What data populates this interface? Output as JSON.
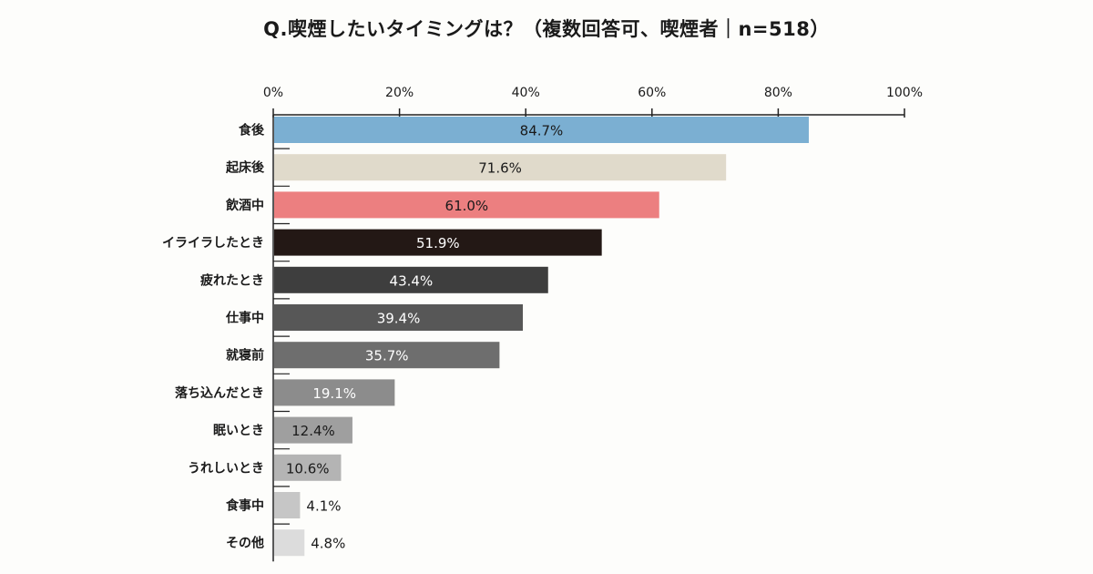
{
  "chart_data": {
    "type": "bar",
    "orientation": "horizontal",
    "title": "Q.喫煙したいタイミングは？（複数回答可、喫煙者｜n=518）",
    "xlim": [
      0,
      100
    ],
    "x_ticks": [
      "0%",
      "20%",
      "40%",
      "60%",
      "80%",
      "100%"
    ],
    "x_tick_values": [
      0,
      20,
      40,
      60,
      80,
      100
    ],
    "grid": false,
    "legend": "none",
    "categories": [
      "食後",
      "起床後",
      "飲酒中",
      "イライラしたとき",
      "疲れたとき",
      "仕事中",
      "就寝前",
      "落ち込んだとき",
      "眠いとき",
      "うれしいとき",
      "食事中",
      "その他"
    ],
    "values": [
      84.7,
      71.6,
      61.0,
      51.9,
      43.4,
      39.4,
      35.7,
      19.1,
      12.4,
      10.6,
      4.1,
      4.8
    ],
    "value_labels": [
      "84.7%",
      "71.6%",
      "61.0%",
      "51.9%",
      "43.4%",
      "39.4%",
      "35.7%",
      "19.1%",
      "12.4%",
      "10.6%",
      "4.1%",
      "4.8%"
    ],
    "bar_colors": [
      "#7bafd2",
      "#e0dacb",
      "#ec7f80",
      "#231815",
      "#3e3e3e",
      "#575757",
      "#6e6e6e",
      "#8c8c8c",
      "#9f9f9f",
      "#b4b4b4",
      "#c6c6c6",
      "#dcdcdc"
    ],
    "label_colors": [
      "#1a1a1a",
      "#1a1a1a",
      "#1a1a1a",
      "#ffffff",
      "#ffffff",
      "#ffffff",
      "#ffffff",
      "#ffffff",
      "#1a1a1a",
      "#1a1a1a",
      "#1a1a1a",
      "#1a1a1a"
    ]
  }
}
